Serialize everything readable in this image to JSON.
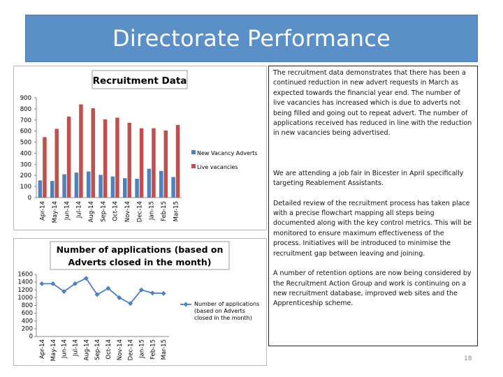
{
  "header": {
    "title": "Directorate Performance"
  },
  "colors": {
    "header_bg": "#5b8fc7",
    "series_blue": "#4f81bd",
    "series_red": "#c0504d"
  },
  "chart_data": [
    {
      "type": "bar",
      "title": "Recruitment Data",
      "categories": [
        "Apr-14",
        "May-14",
        "Jun-14",
        "Jul-14",
        "Aug-14",
        "Sep-14",
        "Oct-14",
        "Nov-14",
        "Dec-14",
        "Jan-15",
        "Feb-15",
        "Mar-15"
      ],
      "series": [
        {
          "name": "New Vacancy Adverts",
          "values": [
            155,
            150,
            210,
            225,
            235,
            205,
            190,
            175,
            170,
            260,
            240,
            185
          ]
        },
        {
          "name": "Live vacancies",
          "values": [
            545,
            620,
            730,
            840,
            805,
            705,
            720,
            675,
            625,
            625,
            605,
            655
          ]
        }
      ],
      "ylim": [
        0,
        900
      ],
      "yticks": [
        0,
        100,
        200,
        300,
        400,
        500,
        600,
        700,
        800,
        900
      ],
      "legend": "right",
      "grid": false
    },
    {
      "type": "line",
      "title": "Number of applications (based on Adverts closed in the month)",
      "categories": [
        "Apr-14",
        "May-14",
        "Jun-14",
        "Jul-14",
        "Aug-14",
        "Sep-14",
        "Oct-14",
        "Nov-14",
        "Dec-14",
        "Jan-15",
        "Feb-15",
        "Mar-15"
      ],
      "series": [
        {
          "name": "Number of applications (based on Adverts closed in the month)",
          "values": [
            1360,
            1360,
            1160,
            1360,
            1500,
            1080,
            1240,
            1000,
            850,
            1200,
            1120,
            1110
          ]
        }
      ],
      "ylim": [
        0,
        1600
      ],
      "yticks": [
        0,
        200,
        400,
        600,
        800,
        1000,
        1200,
        1400,
        1600
      ],
      "legend": "right",
      "grid": false
    }
  ],
  "text_panel": {
    "paragraphs": [
      "The recruitment data demonstrates that there has been a continued reduction in new advert requests in March as expected towards the financial year end.  The number of live vacancies has increased which is due to adverts not being filled and going out to repeat advert.  The number of applications received has reduced in line with the reduction in new vacancies being advertised.",
      "We are attending a job fair in Bicester in April specifically targeting  Reablement Assistants.",
      "Detailed review of the recruitment process has taken place with a precise flowchart mapping all steps being documented along with the key control metrics. This will be monitored to ensure maximum effectiveness of the process. Initiatives will be introduced to minimise the recruitment gap between leaving and joining.",
      "A number of retention options are now being considered by the Recruitment Action Group and work is continuing on a new recruitment database, improved web sites and the Apprenticeship scheme."
    ]
  },
  "footer": {
    "page_number": "18"
  }
}
